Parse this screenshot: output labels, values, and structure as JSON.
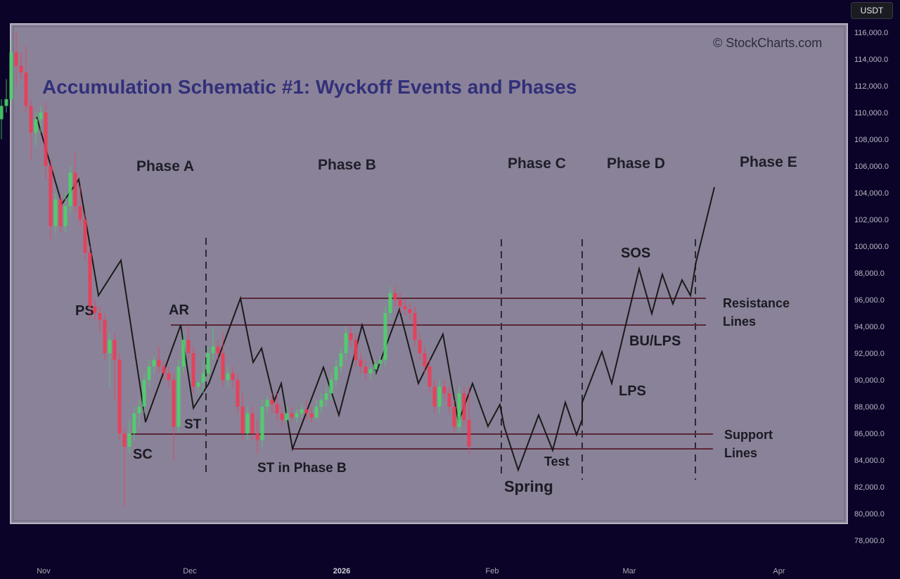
{
  "currency_badge": "USDT",
  "overlay": {
    "watermark": "© StockCharts.com",
    "title": "Accumulation Schematic #1: Wyckoff Events and Phases",
    "phases": [
      "Phase A",
      "Phase B",
      "Phase C",
      "Phase D",
      "Phase E"
    ],
    "events": [
      "PS",
      "SC",
      "AR",
      "ST",
      "ST in Phase B",
      "Spring",
      "Test",
      "SOS",
      "LPS",
      "BU/LPS"
    ],
    "resistance_label": [
      "Resistance",
      "Lines"
    ],
    "support_label": [
      "Support",
      "Lines"
    ]
  },
  "colors": {
    "background": "#0c0428",
    "overlay_panel": "#8a8299",
    "title": "#32307a",
    "up_candle": "#4cd36a",
    "down_candle": "#ee3b55",
    "schematic_line": "#1a1a1a"
  },
  "chart_data": {
    "type": "candlestick",
    "title": "",
    "x_tick_labels": [
      "Nov",
      "Dec",
      "2026",
      "Feb",
      "Mar",
      "Apr"
    ],
    "y_tick_labels": [
      "116,000.0",
      "114,000.0",
      "112,000.0",
      "110,000.0",
      "108,000.0",
      "106,000.0",
      "104,000.0",
      "102,000.0",
      "100,000.0",
      "98,000.0",
      "96,000.0",
      "94,000.0",
      "92,000.0",
      "90,000.0",
      "88,000.0",
      "86,000.0",
      "84,000.0",
      "82,000.0",
      "80,000.0",
      "78,000.0"
    ],
    "ylim": [
      77000,
      117000
    ],
    "candles": [
      {
        "date": "2025-10-27",
        "open": 109500,
        "high": 111000,
        "low": 108000,
        "close": 110500
      },
      {
        "date": "2025-10-28",
        "open": 110500,
        "high": 112500,
        "low": 110000,
        "close": 111000
      },
      {
        "date": "2025-10-29",
        "open": 111000,
        "high": 115500,
        "low": 110500,
        "close": 114500
      },
      {
        "date": "2025-10-30",
        "open": 114500,
        "high": 116000,
        "low": 112000,
        "close": 113500
      },
      {
        "date": "2025-10-31",
        "open": 113500,
        "high": 114500,
        "low": 112500,
        "close": 113000
      },
      {
        "date": "2025-11-01",
        "open": 113000,
        "high": 115000,
        "low": 110000,
        "close": 110500
      },
      {
        "date": "2025-11-02",
        "open": 110500,
        "high": 111000,
        "low": 106500,
        "close": 108500
      },
      {
        "date": "2025-11-03",
        "open": 108500,
        "high": 110000,
        "low": 107500,
        "close": 109500
      },
      {
        "date": "2025-11-04",
        "open": 109500,
        "high": 110500,
        "low": 108500,
        "close": 110000
      },
      {
        "date": "2025-11-05",
        "open": 110000,
        "high": 110800,
        "low": 105000,
        "close": 106000
      },
      {
        "date": "2025-11-06",
        "open": 106000,
        "high": 106500,
        "low": 100500,
        "close": 101500
      },
      {
        "date": "2025-11-07",
        "open": 101500,
        "high": 104000,
        "low": 101000,
        "close": 103500
      },
      {
        "date": "2025-11-08",
        "open": 103500,
        "high": 103800,
        "low": 101000,
        "close": 101500
      },
      {
        "date": "2025-11-09",
        "open": 101500,
        "high": 104000,
        "low": 101000,
        "close": 103000
      },
      {
        "date": "2025-11-10",
        "open": 103000,
        "high": 106000,
        "low": 102500,
        "close": 105500
      },
      {
        "date": "2025-11-11",
        "open": 105500,
        "high": 107000,
        "low": 102500,
        "close": 103000
      },
      {
        "date": "2025-11-12",
        "open": 103000,
        "high": 104500,
        "low": 101500,
        "close": 102000
      },
      {
        "date": "2025-11-13",
        "open": 102000,
        "high": 102500,
        "low": 99000,
        "close": 99500
      },
      {
        "date": "2025-11-14",
        "open": 99500,
        "high": 100000,
        "low": 94500,
        "close": 95500
      },
      {
        "date": "2025-11-15",
        "open": 95500,
        "high": 96000,
        "low": 94500,
        "close": 95000
      },
      {
        "date": "2025-11-16",
        "open": 95000,
        "high": 95500,
        "low": 93500,
        "close": 94500
      },
      {
        "date": "2025-11-17",
        "open": 94500,
        "high": 95000,
        "low": 91500,
        "close": 92000
      },
      {
        "date": "2025-11-18",
        "open": 92000,
        "high": 93500,
        "low": 89500,
        "close": 93000
      },
      {
        "date": "2025-11-19",
        "open": 93000,
        "high": 93500,
        "low": 88500,
        "close": 91500
      },
      {
        "date": "2025-11-20",
        "open": 91500,
        "high": 92000,
        "low": 85500,
        "close": 86000
      },
      {
        "date": "2025-11-21",
        "open": 86000,
        "high": 86500,
        "low": 80500,
        "close": 85000
      },
      {
        "date": "2025-11-22",
        "open": 85000,
        "high": 87000,
        "low": 84500,
        "close": 86000
      },
      {
        "date": "2025-11-23",
        "open": 86000,
        "high": 88000,
        "low": 85500,
        "close": 87500
      },
      {
        "date": "2025-11-24",
        "open": 87500,
        "high": 88500,
        "low": 86500,
        "close": 88000
      },
      {
        "date": "2025-11-25",
        "open": 88000,
        "high": 90500,
        "low": 87500,
        "close": 90000
      },
      {
        "date": "2025-11-26",
        "open": 90000,
        "high": 91500,
        "low": 89500,
        "close": 91000
      },
      {
        "date": "2025-11-27",
        "open": 91000,
        "high": 91800,
        "low": 90500,
        "close": 91500
      },
      {
        "date": "2025-11-28",
        "open": 91500,
        "high": 92500,
        "low": 90500,
        "close": 91000
      },
      {
        "date": "2025-11-29",
        "open": 91000,
        "high": 91500,
        "low": 90000,
        "close": 90500
      },
      {
        "date": "2025-11-30",
        "open": 90500,
        "high": 91000,
        "low": 89500,
        "close": 90000
      },
      {
        "date": "2025-12-01",
        "open": 90000,
        "high": 90500,
        "low": 84000,
        "close": 86500
      },
      {
        "date": "2025-12-02",
        "open": 86500,
        "high": 91500,
        "low": 86000,
        "close": 91000
      },
      {
        "date": "2025-12-03",
        "open": 91000,
        "high": 93500,
        "low": 90500,
        "close": 93000
      },
      {
        "date": "2025-12-04",
        "open": 93000,
        "high": 94000,
        "low": 91500,
        "close": 92000
      },
      {
        "date": "2025-12-05",
        "open": 92000,
        "high": 92500,
        "low": 89000,
        "close": 89500
      },
      {
        "date": "2025-12-06",
        "open": 89500,
        "high": 90000,
        "low": 89000,
        "close": 89800
      },
      {
        "date": "2025-12-07",
        "open": 89800,
        "high": 91500,
        "low": 89000,
        "close": 90500
      },
      {
        "date": "2025-12-08",
        "open": 90500,
        "high": 92500,
        "low": 90000,
        "close": 92000
      },
      {
        "date": "2025-12-09",
        "open": 92000,
        "high": 94000,
        "low": 91500,
        "close": 92500
      },
      {
        "date": "2025-12-10",
        "open": 92500,
        "high": 93000,
        "low": 91500,
        "close": 92000
      },
      {
        "date": "2025-12-11",
        "open": 92000,
        "high": 93500,
        "low": 89500,
        "close": 90000
      },
      {
        "date": "2025-12-12",
        "open": 90000,
        "high": 91000,
        "low": 89500,
        "close": 90500
      },
      {
        "date": "2025-12-13",
        "open": 90500,
        "high": 91000,
        "low": 89500,
        "close": 90000
      },
      {
        "date": "2025-12-14",
        "open": 90000,
        "high": 90500,
        "low": 87500,
        "close": 88000
      },
      {
        "date": "2025-12-15",
        "open": 88000,
        "high": 89000,
        "low": 85500,
        "close": 86000
      },
      {
        "date": "2025-12-16",
        "open": 86000,
        "high": 88000,
        "low": 85500,
        "close": 87500
      },
      {
        "date": "2025-12-17",
        "open": 87500,
        "high": 88000,
        "low": 85500,
        "close": 86000
      },
      {
        "date": "2025-12-18",
        "open": 86000,
        "high": 87000,
        "low": 84500,
        "close": 85500
      },
      {
        "date": "2025-12-19",
        "open": 85500,
        "high": 88500,
        "low": 85000,
        "close": 88000
      },
      {
        "date": "2025-12-20",
        "open": 88000,
        "high": 88800,
        "low": 87500,
        "close": 88500
      },
      {
        "date": "2025-12-21",
        "open": 88500,
        "high": 89000,
        "low": 87500,
        "close": 88200
      },
      {
        "date": "2025-12-22",
        "open": 88200,
        "high": 89000,
        "low": 87000,
        "close": 87500
      },
      {
        "date": "2025-12-23",
        "open": 87500,
        "high": 88000,
        "low": 86500,
        "close": 87000
      },
      {
        "date": "2025-12-24",
        "open": 87000,
        "high": 88000,
        "low": 86800,
        "close": 87500
      },
      {
        "date": "2025-12-25",
        "open": 87500,
        "high": 88000,
        "low": 87000,
        "close": 87200
      },
      {
        "date": "2025-12-26",
        "open": 87200,
        "high": 87800,
        "low": 86800,
        "close": 87500
      },
      {
        "date": "2025-12-27",
        "open": 87500,
        "high": 88200,
        "low": 87200,
        "close": 87800
      },
      {
        "date": "2025-12-28",
        "open": 87800,
        "high": 88500,
        "low": 87000,
        "close": 87500
      },
      {
        "date": "2025-12-29",
        "open": 87500,
        "high": 88000,
        "low": 86800,
        "close": 87200
      },
      {
        "date": "2025-12-30",
        "open": 87200,
        "high": 88500,
        "low": 87000,
        "close": 88000
      },
      {
        "date": "2025-12-31",
        "open": 88000,
        "high": 89000,
        "low": 87500,
        "close": 88500
      },
      {
        "date": "2026-01-01",
        "open": 88500,
        "high": 89500,
        "low": 88000,
        "close": 89000
      },
      {
        "date": "2026-01-02",
        "open": 89000,
        "high": 90500,
        "low": 88500,
        "close": 90000
      },
      {
        "date": "2026-01-03",
        "open": 90000,
        "high": 91500,
        "low": 89500,
        "close": 91000
      },
      {
        "date": "2026-01-04",
        "open": 91000,
        "high": 92500,
        "low": 90500,
        "close": 92000
      },
      {
        "date": "2026-01-05",
        "open": 92000,
        "high": 94000,
        "low": 91500,
        "close": 93500
      },
      {
        "date": "2026-01-06",
        "open": 93500,
        "high": 94000,
        "low": 92500,
        "close": 93000
      },
      {
        "date": "2026-01-07",
        "open": 93000,
        "high": 93500,
        "low": 91000,
        "close": 91500
      },
      {
        "date": "2026-01-08",
        "open": 91500,
        "high": 92000,
        "low": 90500,
        "close": 91000
      },
      {
        "date": "2026-01-09",
        "open": 91000,
        "high": 91500,
        "low": 90000,
        "close": 90500
      },
      {
        "date": "2026-01-10",
        "open": 90500,
        "high": 91000,
        "low": 90000,
        "close": 90800
      },
      {
        "date": "2026-01-11",
        "open": 90800,
        "high": 91500,
        "low": 90500,
        "close": 91200
      },
      {
        "date": "2026-01-12",
        "open": 91200,
        "high": 91800,
        "low": 90800,
        "close": 91500
      },
      {
        "date": "2026-01-13",
        "open": 91500,
        "high": 95500,
        "low": 91000,
        "close": 95000
      },
      {
        "date": "2026-01-14",
        "open": 95000,
        "high": 97000,
        "low": 94500,
        "close": 96500
      },
      {
        "date": "2026-01-15",
        "open": 96500,
        "high": 97000,
        "low": 95500,
        "close": 96000
      },
      {
        "date": "2026-01-16",
        "open": 96000,
        "high": 96500,
        "low": 95000,
        "close": 95500
      },
      {
        "date": "2026-01-17",
        "open": 95500,
        "high": 96000,
        "low": 94800,
        "close": 95300
      },
      {
        "date": "2026-01-18",
        "open": 95300,
        "high": 95800,
        "low": 94500,
        "close": 95000
      },
      {
        "date": "2026-01-19",
        "open": 95000,
        "high": 95500,
        "low": 92500,
        "close": 93000
      },
      {
        "date": "2026-01-20",
        "open": 93000,
        "high": 93500,
        "low": 91500,
        "close": 92000
      },
      {
        "date": "2026-01-21",
        "open": 92000,
        "high": 92500,
        "low": 90500,
        "close": 91000
      },
      {
        "date": "2026-01-22",
        "open": 91000,
        "high": 91500,
        "low": 89000,
        "close": 89500
      },
      {
        "date": "2026-01-23",
        "open": 89500,
        "high": 90000,
        "low": 87500,
        "close": 88000
      },
      {
        "date": "2026-01-24",
        "open": 88000,
        "high": 90000,
        "low": 87500,
        "close": 89500
      },
      {
        "date": "2026-01-25",
        "open": 89500,
        "high": 90000,
        "low": 88500,
        "close": 89000
      },
      {
        "date": "2026-01-26",
        "open": 89000,
        "high": 89500,
        "low": 87500,
        "close": 88000
      },
      {
        "date": "2026-01-27",
        "open": 88000,
        "high": 88500,
        "low": 86000,
        "close": 86500
      },
      {
        "date": "2026-01-28",
        "open": 86500,
        "high": 89500,
        "low": 86000,
        "close": 89000
      },
      {
        "date": "2026-01-29",
        "open": 89000,
        "high": 89500,
        "low": 86500,
        "close": 87000
      },
      {
        "date": "2026-01-30",
        "open": 87000,
        "high": 89500,
        "low": 84500,
        "close": 85000
      }
    ]
  }
}
